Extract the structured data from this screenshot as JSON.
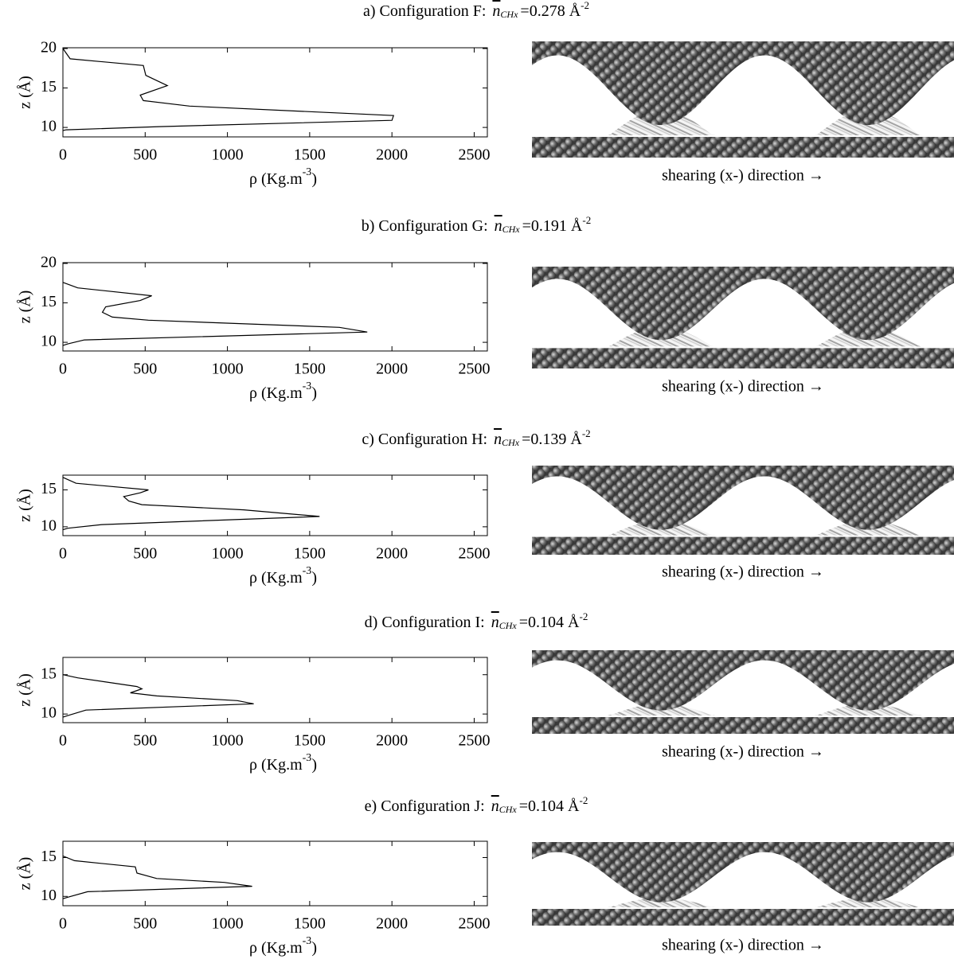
{
  "chart_data": [
    {
      "type": "line",
      "title": "a) Configuration F:",
      "density_symbol": "n",
      "density_subscript": "CHx",
      "density_value": "=0.278 Å",
      "density_exponent": "-2",
      "xlabel": "ρ (Kg.m",
      "xlabel_exponent": "-3",
      "xlabel_end": ")",
      "ylabel": "z (Å)",
      "image_caption": "shearing (x-) direction →",
      "x": [
        0,
        44,
        489,
        504,
        635,
        470,
        489,
        770,
        2010,
        2000,
        586,
        20,
        0
      ],
      "values": [
        20,
        18.7,
        17.85,
        16.6,
        15.3,
        14.1,
        13.4,
        12.7,
        11.5,
        10.9,
        10.1,
        9.7,
        9.6
      ],
      "color": "#000000",
      "xlim": [
        0,
        2580
      ],
      "ylim": [
        8.8,
        20.1
      ],
      "xticks": [
        0,
        500,
        1000,
        1500,
        2000,
        2500
      ],
      "yticks": [
        10,
        15,
        20
      ]
    },
    {
      "type": "line",
      "title": "b) Configuration G:",
      "density_symbol": "n",
      "density_subscript": "CHx",
      "density_value": "=0.191 Å",
      "density_exponent": "-2",
      "xlabel": "ρ (Kg.m",
      "xlabel_exponent": "-3",
      "xlabel_end": ")",
      "ylabel": "z (Å)",
      "image_caption": "shearing (x-) direction →",
      "x": [
        0,
        90,
        540,
        470,
        260,
        240,
        300,
        520,
        1680,
        1850,
        130,
        30,
        0
      ],
      "values": [
        17.6,
        16.9,
        15.9,
        15.3,
        14.5,
        13.8,
        13.2,
        12.8,
        11.9,
        11.3,
        10.3,
        9.8,
        9.6
      ],
      "color": "#000000",
      "xlim": [
        0,
        2580
      ],
      "ylim": [
        8.9,
        20.1
      ],
      "xticks": [
        0,
        500,
        1000,
        1500,
        2000,
        2500
      ],
      "yticks": [
        10,
        15,
        20
      ]
    },
    {
      "type": "line",
      "title": "c) Configuration H:",
      "density_symbol": "n",
      "density_subscript": "CHx",
      "density_value": "=0.139 Å",
      "density_exponent": "-2",
      "xlabel": "ρ (Kg.m",
      "xlabel_exponent": "-3",
      "xlabel_end": ")",
      "ylabel": "z (Å)",
      "image_caption": "shearing (x-) direction →",
      "x": [
        0,
        80,
        520,
        470,
        370,
        400,
        480,
        1100,
        1560,
        240,
        30,
        0
      ],
      "values": [
        16.7,
        15.9,
        15.0,
        14.6,
        14.1,
        13.5,
        13.0,
        12.3,
        11.4,
        10.3,
        9.8,
        9.6
      ],
      "color": "#000000",
      "xlim": [
        0,
        2580
      ],
      "ylim": [
        8.8,
        17
      ],
      "xticks": [
        0,
        500,
        1000,
        1500,
        2000,
        2500
      ],
      "yticks": [
        10,
        15
      ]
    },
    {
      "type": "line",
      "title": "d) Configuration I:",
      "density_symbol": "n",
      "density_subscript": "CHx",
      "density_value": "=0.104 Å",
      "density_exponent": "-2",
      "xlabel": "ρ (Kg.m",
      "xlabel_exponent": "-3",
      "xlabel_end": ")",
      "ylabel": "z (Å)",
      "image_caption": "shearing (x-) direction →",
      "x": [
        0,
        90,
        450,
        480,
        410,
        570,
        1060,
        1160,
        140,
        30,
        0
      ],
      "values": [
        15,
        14.6,
        13.5,
        13.2,
        12.7,
        12.3,
        11.7,
        11.3,
        10.5,
        9.8,
        9.6
      ],
      "color": "#000000",
      "xlim": [
        0,
        2580
      ],
      "ylim": [
        8.9,
        17.2
      ],
      "xticks": [
        0,
        500,
        1000,
        1500,
        2000,
        2500
      ],
      "yticks": [
        10,
        15
      ]
    },
    {
      "type": "line",
      "title": "e) Configuration J:",
      "density_symbol": "n",
      "density_subscript": "CHx",
      "density_value": "=0.104 Å",
      "density_exponent": "-2",
      "xlabel": "ρ (Kg.m",
      "xlabel_exponent": "-3",
      "xlabel_end": ")",
      "ylabel": "z (Å)",
      "image_caption": "shearing (x-) direction →",
      "x": [
        0,
        70,
        440,
        450,
        570,
        980,
        1150,
        150,
        30,
        0
      ],
      "values": [
        15.2,
        14.6,
        13.8,
        13.0,
        12.3,
        11.8,
        11.3,
        10.6,
        9.9,
        9.7
      ],
      "color": "#000000",
      "xlim": [
        0,
        2580
      ],
      "ylim": [
        8.8,
        17.1
      ],
      "xticks": [
        0,
        500,
        1000,
        1500,
        2000,
        2500
      ],
      "yticks": [
        10,
        15
      ]
    }
  ]
}
